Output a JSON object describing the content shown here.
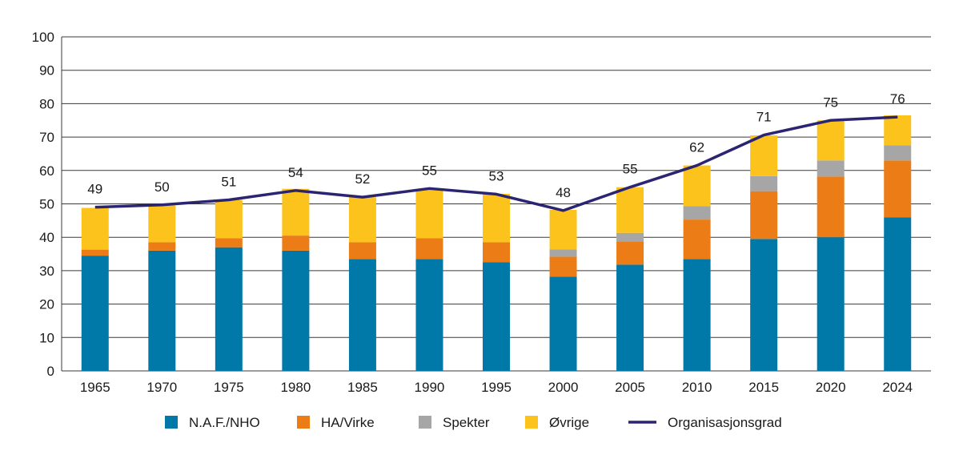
{
  "chart_data": {
    "type": "bar",
    "stacked": true,
    "categories": [
      "1965",
      "1970",
      "1975",
      "1980",
      "1985",
      "1990",
      "1995",
      "2000",
      "2005",
      "2010",
      "2015",
      "2020",
      "2024"
    ],
    "series": [
      {
        "name": "N.A.F./NHO",
        "color": "#0079a8",
        "values": [
          34.5,
          36,
          37,
          36,
          33.5,
          33.5,
          32.5,
          28.2,
          31.8,
          33.5,
          39.5,
          40,
          46
        ]
      },
      {
        "name": "HA/Virke",
        "color": "#ec7c16",
        "values": [
          1.8,
          2.5,
          2.7,
          4.5,
          5,
          6.2,
          6,
          6,
          7,
          11.8,
          14.3,
          18.2,
          17
        ]
      },
      {
        "name": "Spekter",
        "color": "#a6a6a6",
        "values": [
          0,
          0,
          0,
          0,
          0,
          0,
          0,
          2.2,
          2.5,
          4,
          4.5,
          4.8,
          4.5
        ]
      },
      {
        "name": "Øvrige",
        "color": "#fbc31b",
        "values": [
          12.5,
          11,
          11.5,
          14,
          13.5,
          14.5,
          14.5,
          11.8,
          13.7,
          12.2,
          12.2,
          12,
          9
        ]
      }
    ],
    "line": {
      "name": "Organisasjonsgrad",
      "color": "#2b2472",
      "values": [
        49,
        49.7,
        51.2,
        54,
        52,
        54.6,
        52.9,
        48,
        55,
        61.5,
        70.6,
        75,
        76
      ],
      "labels": [
        "49",
        "50",
        "51",
        "54",
        "52",
        "55",
        "53",
        "48",
        "55",
        "62",
        "71",
        "75",
        "76"
      ]
    },
    "ylim": [
      0,
      100
    ],
    "yticks": [
      "0",
      "10",
      "20",
      "30",
      "40",
      "50",
      "60",
      "70",
      "80",
      "90",
      "100"
    ],
    "grid": true,
    "legend_position": "bottom"
  }
}
